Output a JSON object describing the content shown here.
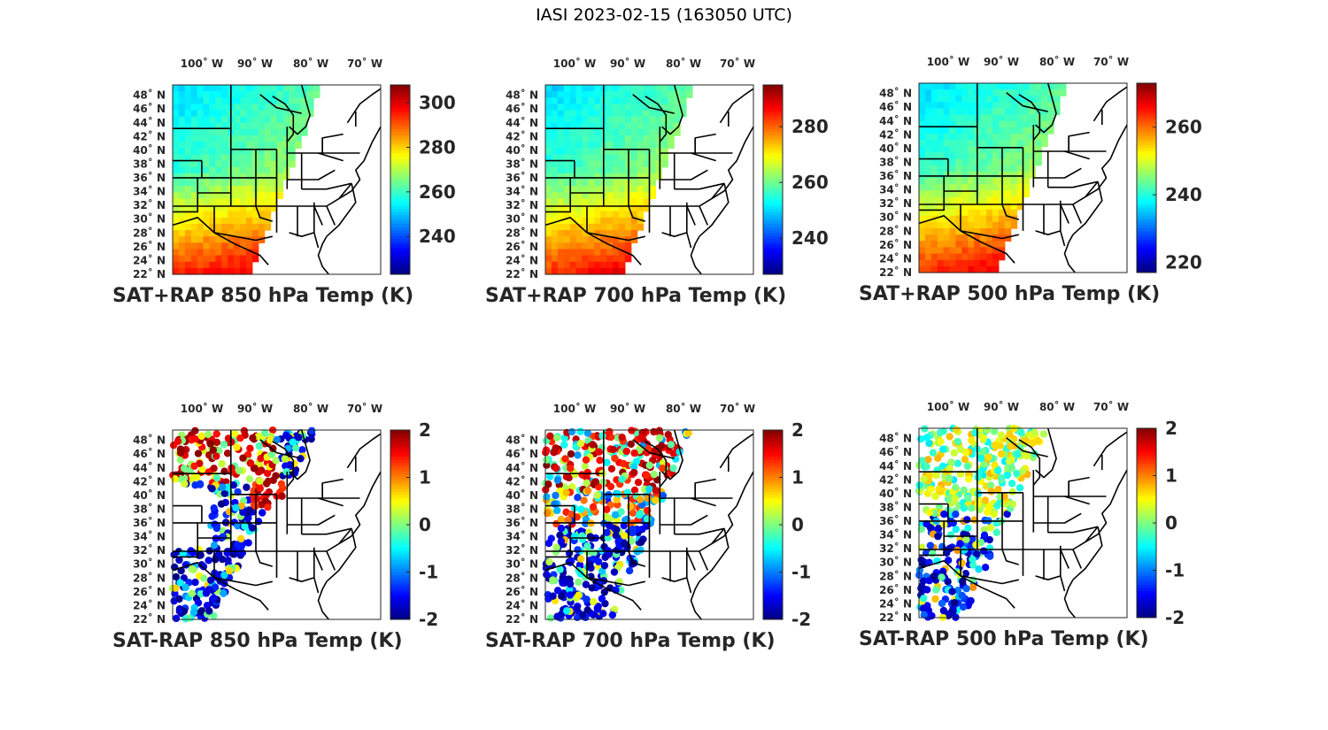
{
  "figure": {
    "title": "IASI 2023-02-15 (163050 UTC)"
  },
  "chart_data": [
    {
      "type": "heatmap",
      "title": "SAT+RAP 850 hPa Temp (K)",
      "lon_ticks": [
        "100˚ W",
        "90˚ W",
        "80˚ W",
        "70˚ W"
      ],
      "lat_ticks": [
        "48˚ N",
        "46˚ N",
        "44˚ N",
        "42˚ N",
        "40˚ N",
        "38˚ N",
        "36˚ N",
        "34˚ N",
        "32˚ N",
        "30˚ N",
        "28˚ N",
        "26˚ N",
        "24˚ N",
        "22˚ N"
      ],
      "lon_range": [
        -105,
        -67
      ],
      "lat_range": [
        22,
        49.5
      ],
      "colorbar": {
        "colormap": "jet",
        "clim": [
          223,
          308
        ],
        "ticks": [
          240,
          260,
          280,
          300
        ],
        "tick_labels": [
          "240",
          "260",
          "280",
          "300"
        ]
      }
    },
    {
      "type": "heatmap",
      "title": "SAT+RAP 700 hPa Temp (K)",
      "lon_ticks": [
        "100˚ W",
        "90˚ W",
        "80˚ W",
        "70˚ W"
      ],
      "lat_ticks": [
        "48˚ N",
        "46˚ N",
        "44˚ N",
        "42˚ N",
        "40˚ N",
        "38˚ N",
        "36˚ N",
        "34˚ N",
        "32˚ N",
        "30˚ N",
        "28˚ N",
        "26˚ N",
        "24˚ N",
        "22˚ N"
      ],
      "lon_range": [
        -105,
        -67
      ],
      "lat_range": [
        22,
        49.5
      ],
      "colorbar": {
        "colormap": "jet",
        "clim": [
          227,
          295
        ],
        "ticks": [
          240,
          260,
          280
        ],
        "tick_labels": [
          "240",
          "260",
          "280"
        ]
      }
    },
    {
      "type": "heatmap",
      "title": "SAT+RAP 500 hPa Temp (K)",
      "lon_ticks": [
        "100˚ W",
        "90˚ W",
        "80˚ W",
        "70˚ W"
      ],
      "lat_ticks": [
        "48˚ N",
        "46˚ N",
        "44˚ N",
        "42˚ N",
        "40˚ N",
        "38˚ N",
        "36˚ N",
        "34˚ N",
        "32˚ N",
        "30˚ N",
        "28˚ N",
        "26˚ N",
        "24˚ N",
        "22˚ N"
      ],
      "lon_range": [
        -105,
        -67
      ],
      "lat_range": [
        22,
        49.5
      ],
      "colorbar": {
        "colormap": "jet",
        "clim": [
          217,
          273
        ],
        "ticks": [
          220,
          240,
          260
        ],
        "tick_labels": [
          "220",
          "240",
          "260"
        ]
      }
    },
    {
      "type": "scatter",
      "title": "SAT-RAP 850 hPa Temp (K)",
      "lon_ticks": [
        "100˚ W",
        "90˚ W",
        "80˚ W",
        "70˚ W"
      ],
      "lat_ticks": [
        "48˚ N",
        "46˚ N",
        "44˚ N",
        "42˚ N",
        "40˚ N",
        "38˚ N",
        "36˚ N",
        "34˚ N",
        "32˚ N",
        "30˚ N",
        "28˚ N",
        "26˚ N",
        "24˚ N",
        "22˚ N"
      ],
      "lon_range": [
        -105,
        -67
      ],
      "lat_range": [
        22,
        49.5
      ],
      "colorbar": {
        "colormap": "jet",
        "clim": [
          -2,
          2
        ],
        "ticks": [
          2,
          1,
          0,
          -1,
          -2
        ],
        "tick_labels": [
          "2",
          "1",
          "0",
          "-1",
          "-2"
        ]
      }
    },
    {
      "type": "scatter",
      "title": "SAT-RAP 700 hPa Temp (K)",
      "lon_ticks": [
        "100˚ W",
        "90˚ W",
        "80˚ W",
        "70˚ W"
      ],
      "lat_ticks": [
        "48˚ N",
        "46˚ N",
        "44˚ N",
        "42˚ N",
        "40˚ N",
        "38˚ N",
        "36˚ N",
        "34˚ N",
        "32˚ N",
        "30˚ N",
        "28˚ N",
        "26˚ N",
        "24˚ N",
        "22˚ N"
      ],
      "lon_range": [
        -105,
        -67
      ],
      "lat_range": [
        22,
        49.5
      ],
      "colorbar": {
        "colormap": "jet",
        "clim": [
          -2,
          2
        ],
        "ticks": [
          2,
          1,
          0,
          -1,
          -2
        ],
        "tick_labels": [
          "2",
          "1",
          "0",
          "-1",
          "-2"
        ]
      }
    },
    {
      "type": "scatter",
      "title": "SAT-RAP 500 hPa Temp (K)",
      "lon_ticks": [
        "100˚ W",
        "90˚ W",
        "80˚ W",
        "70˚ W"
      ],
      "lat_ticks": [
        "48˚ N",
        "46˚ N",
        "44˚ N",
        "42˚ N",
        "40˚ N",
        "38˚ N",
        "36˚ N",
        "34˚ N",
        "32˚ N",
        "30˚ N",
        "28˚ N",
        "26˚ N",
        "24˚ N",
        "22˚ N"
      ],
      "lon_range": [
        -105,
        -67
      ],
      "lat_range": [
        22,
        49.5
      ],
      "colorbar": {
        "colormap": "jet",
        "clim": [
          -2,
          2
        ],
        "ticks": [
          2,
          1,
          0,
          -1,
          -2
        ],
        "tick_labels": [
          "2",
          "1",
          "0",
          "-1",
          "-2"
        ]
      }
    }
  ]
}
